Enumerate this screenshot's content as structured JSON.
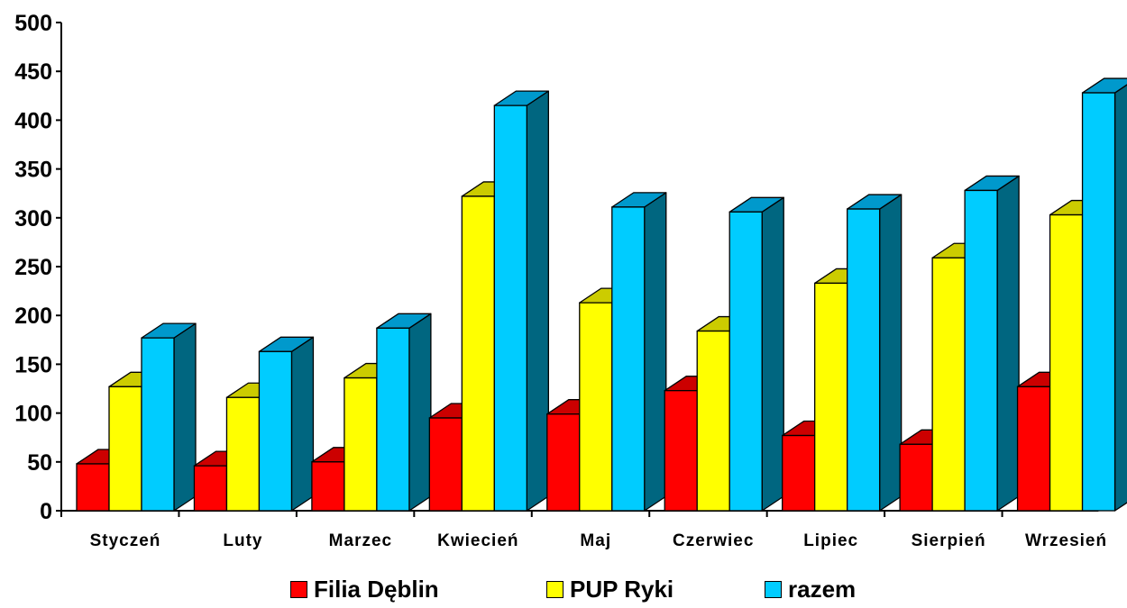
{
  "chart_data": {
    "type": "bar",
    "categories": [
      "Styczeń",
      "Luty",
      "Marzec",
      "Kwiecień",
      "Maj",
      "Czerwiec",
      "Lipiec",
      "Sierpień",
      "Wrzesień"
    ],
    "series": [
      {
        "name": "Filia Dęblin",
        "values": [
          48,
          46,
          50,
          95,
          99,
          123,
          77,
          68,
          127
        ],
        "color": "#ff0000",
        "top_color": "#cc0000",
        "side_color": "#990000"
      },
      {
        "name": "PUP Ryki",
        "values": [
          127,
          116,
          136,
          322,
          213,
          184,
          233,
          259,
          303
        ],
        "color": "#ffff00",
        "top_color": "#cccc00",
        "side_color": "#999900"
      },
      {
        "name": "razem",
        "values": [
          177,
          163,
          187,
          415,
          311,
          306,
          309,
          328,
          428
        ],
        "color": "#00ccff",
        "top_color": "#0099cc",
        "side_color": "#006680"
      }
    ],
    "yticks": [
      0,
      50,
      100,
      150,
      200,
      250,
      300,
      350,
      400,
      450,
      500
    ],
    "ylim": [
      0,
      500
    ],
    "grid": false,
    "legend_position": "bottom",
    "style": "3d-clustered-column"
  }
}
